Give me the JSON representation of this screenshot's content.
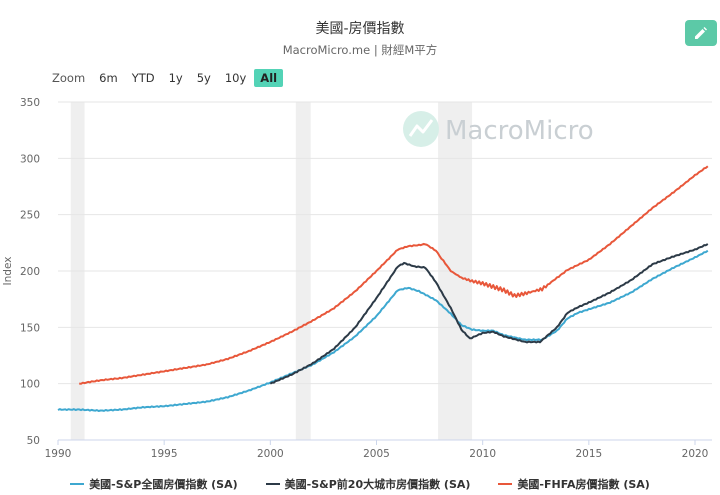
{
  "header": {
    "title": "美國-房價指數",
    "subtitle": "MacroMicro.me | 財經M平方"
  },
  "toolbar": {
    "edit_icon": "pencil-icon",
    "edit_color": "#5cc9a7"
  },
  "zoom": {
    "label": "Zoom",
    "buttons": [
      "6m",
      "YTD",
      "1y",
      "5y",
      "10y",
      "All"
    ],
    "active": "All"
  },
  "watermark": {
    "text": "MacroMicro",
    "icon": "macromicro-logo-icon"
  },
  "chart_data": {
    "type": "line",
    "ylabel": "Index",
    "xlim": [
      1990,
      2020.8
    ],
    "ylim": [
      50,
      350
    ],
    "x_ticks": [
      "1990",
      "1995",
      "2000",
      "2005",
      "2010",
      "2015",
      "2020"
    ],
    "y_ticks": [
      "50",
      "100",
      "150",
      "200",
      "250",
      "300",
      "350"
    ],
    "grid": true,
    "legend_position": "bottom",
    "recession_bands": [
      [
        1990.6,
        1991.25
      ],
      [
        2001.2,
        2001.9
      ],
      [
        2007.9,
        2009.5
      ]
    ],
    "series": [
      {
        "name": "美國-S&P全國房價指數 (SA)",
        "color": "#3ea8d0",
        "points": [
          [
            1990,
            77
          ],
          [
            1991,
            77
          ],
          [
            1992,
            76
          ],
          [
            1993,
            77
          ],
          [
            1994,
            79
          ],
          [
            1995,
            80
          ],
          [
            1996,
            82
          ],
          [
            1997,
            84
          ],
          [
            1998,
            88
          ],
          [
            1999,
            94
          ],
          [
            2000,
            101
          ],
          [
            2001,
            109
          ],
          [
            2002,
            117
          ],
          [
            2003,
            128
          ],
          [
            2004,
            142
          ],
          [
            2005,
            160
          ],
          [
            2006,
            183
          ],
          [
            2006.5,
            185
          ],
          [
            2007,
            182
          ],
          [
            2007.8,
            174
          ],
          [
            2008.5,
            162
          ],
          [
            2009,
            152
          ],
          [
            2009.5,
            148
          ],
          [
            2010,
            147
          ],
          [
            2010.5,
            147
          ],
          [
            2011,
            143
          ],
          [
            2012,
            139
          ],
          [
            2012.8,
            139
          ],
          [
            2013.5,
            147
          ],
          [
            2014,
            158
          ],
          [
            2014.5,
            163
          ],
          [
            2015,
            166
          ],
          [
            2016,
            172
          ],
          [
            2017,
            181
          ],
          [
            2018,
            193
          ],
          [
            2019,
            203
          ],
          [
            2020,
            212
          ],
          [
            2020.6,
            218
          ]
        ]
      },
      {
        "name": "美國-S&P前20大城市房價指數 (SA)",
        "color": "#2c3a47",
        "points": [
          [
            2000,
            100
          ],
          [
            2001,
            108
          ],
          [
            2002,
            118
          ],
          [
            2003,
            131
          ],
          [
            2004,
            150
          ],
          [
            2005,
            176
          ],
          [
            2006,
            204
          ],
          [
            2006.3,
            207
          ],
          [
            2006.8,
            204
          ],
          [
            2007.3,
            203
          ],
          [
            2007.8,
            190
          ],
          [
            2008.5,
            167
          ],
          [
            2009,
            148
          ],
          [
            2009.4,
            140
          ],
          [
            2010,
            145
          ],
          [
            2010.5,
            146
          ],
          [
            2011,
            142
          ],
          [
            2012,
            137
          ],
          [
            2012.7,
            137
          ],
          [
            2013.5,
            150
          ],
          [
            2014,
            163
          ],
          [
            2014.5,
            168
          ],
          [
            2015,
            172
          ],
          [
            2016,
            181
          ],
          [
            2017,
            192
          ],
          [
            2018,
            206
          ],
          [
            2019,
            213
          ],
          [
            2020,
            219
          ],
          [
            2020.6,
            224
          ]
        ]
      },
      {
        "name": "美國-FHFA房價指數 (SA)",
        "color": "#e8573a",
        "points": [
          [
            1991,
            100
          ],
          [
            1992,
            103
          ],
          [
            1993,
            105
          ],
          [
            1994,
            108
          ],
          [
            1995,
            111
          ],
          [
            1996,
            114
          ],
          [
            1997,
            117
          ],
          [
            1998,
            122
          ],
          [
            1999,
            129
          ],
          [
            2000,
            137
          ],
          [
            2001,
            146
          ],
          [
            2002,
            156
          ],
          [
            2003,
            167
          ],
          [
            2004,
            182
          ],
          [
            2005,
            200
          ],
          [
            2006,
            219
          ],
          [
            2006.5,
            222
          ],
          [
            2007,
            223
          ],
          [
            2007.3,
            224
          ],
          [
            2007.8,
            218
          ],
          [
            2008.5,
            200
          ],
          [
            2009,
            194
          ],
          [
            2009.5,
            191
          ],
          [
            2010,
            189
          ],
          [
            2011,
            183
          ],
          [
            2011.5,
            178
          ],
          [
            2012,
            180
          ],
          [
            2012.8,
            184
          ],
          [
            2013.5,
            194
          ],
          [
            2014,
            201
          ],
          [
            2015,
            210
          ],
          [
            2016,
            224
          ],
          [
            2017,
            240
          ],
          [
            2018,
            256
          ],
          [
            2019,
            270
          ],
          [
            2020,
            285
          ],
          [
            2020.6,
            293
          ]
        ]
      }
    ]
  }
}
